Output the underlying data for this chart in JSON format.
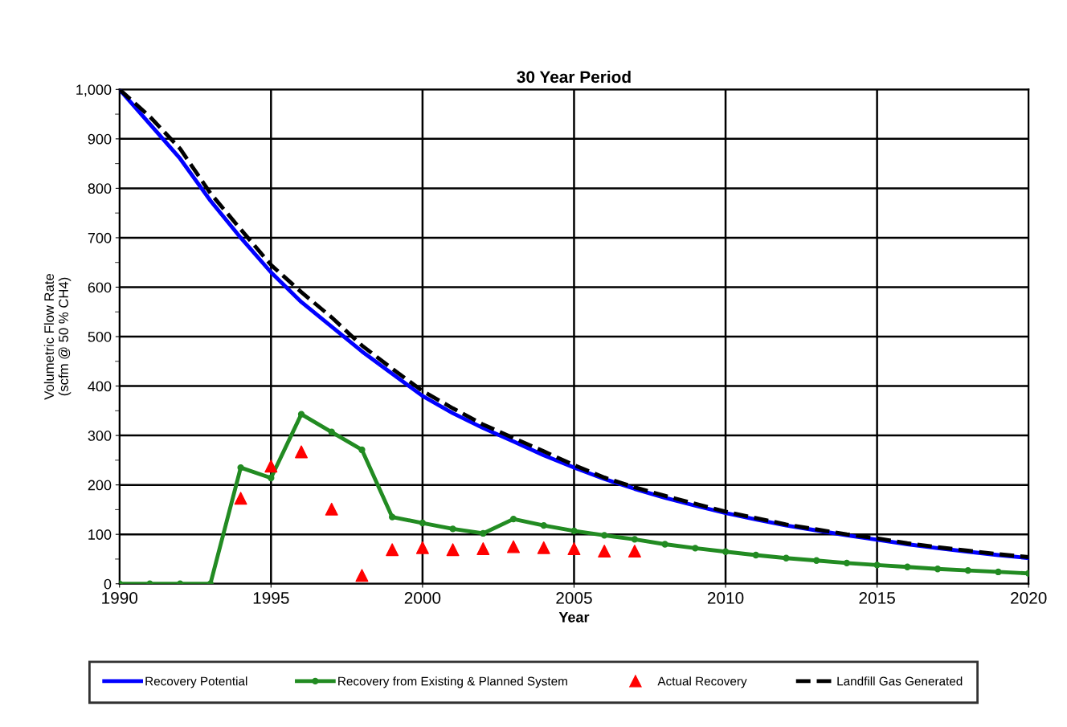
{
  "chart_data": {
    "type": "line",
    "title": "30 Year Period",
    "xlabel": "Year",
    "ylabel": "Volumetric Flow Rate\n(scfm @ 50 % CH4)",
    "xlim": [
      1990,
      2020
    ],
    "xticks": [
      1990,
      1995,
      2000,
      2005,
      2010,
      2015,
      2020
    ],
    "ylim": [
      0,
      1000
    ],
    "yticks": [
      0,
      {
        "value": 50,
        "label": null
      },
      {
        "value": 100,
        "label": "100"
      },
      {
        "value": 150,
        "label": null
      },
      200,
      {
        "value": 250,
        "label": null
      },
      300,
      {
        "value": 350,
        "label": null
      },
      400,
      {
        "value": 450,
        "label": null
      },
      500,
      {
        "value": 550,
        "label": null
      },
      600,
      {
        "value": 650,
        "label": null
      },
      700,
      {
        "value": 750,
        "label": null
      },
      800,
      {
        "value": 850,
        "label": null
      },
      900,
      {
        "value": 950,
        "label": null
      },
      {
        "value": 1000,
        "label": "1,000"
      }
    ],
    "grid": true,
    "legend": "bottom",
    "x": [
      1990,
      1991,
      1992,
      1993,
      1994,
      1995,
      1996,
      1997,
      1998,
      1999,
      2000,
      2001,
      2002,
      2003,
      2004,
      2005,
      2006,
      2007,
      2008,
      2009,
      2010,
      2011,
      2012,
      2013,
      2014,
      2015,
      2016,
      2017,
      2018,
      2019,
      2020
    ],
    "series": [
      {
        "name": "Recovery Potential",
        "color": "#0000ff",
        "marker": "none",
        "line_style": "solid",
        "values": [
          1000,
          930,
          860,
          775,
          700,
          630,
          570,
          520,
          470,
          425,
          380,
          345,
          315,
          288,
          260,
          235,
          212,
          192,
          174,
          158,
          143,
          130,
          118,
          108,
          98,
          89,
          80,
          72,
          65,
          58,
          52
        ]
      },
      {
        "name": "Recovery from Existing & Planned System",
        "color": "#228b22",
        "marker": "circle",
        "line_style": "solid",
        "values": [
          0,
          0,
          0,
          0,
          235,
          214,
          343,
          307,
          271,
          135,
          123,
          111,
          102,
          131,
          118,
          107,
          98,
          90,
          80,
          72,
          65,
          58,
          52,
          47,
          42,
          38,
          34,
          30,
          27,
          24,
          21
        ]
      },
      {
        "name": "Actual Recovery",
        "type": "scatter",
        "color": "#ff0000",
        "marker": "triangle",
        "x": [
          1994,
          1995,
          1996,
          1997,
          1998,
          1999,
          2000,
          2001,
          2002,
          2003,
          2004,
          2005,
          2006,
          2007
        ],
        "values": [
          173,
          238,
          267,
          151,
          17,
          69,
          73,
          69,
          71,
          75,
          73,
          71,
          66,
          66
        ]
      },
      {
        "name": "Landfill Gas Generated",
        "color": "#000000",
        "marker": "none",
        "line_style": "dashed",
        "values": [
          1000,
          945,
          880,
          790,
          717,
          645,
          590,
          539,
          482,
          435,
          390,
          355,
          322,
          295,
          268,
          240,
          215,
          195,
          178,
          162,
          146,
          133,
          120,
          110,
          100,
          92,
          82,
          74,
          67,
          60,
          54
        ]
      }
    ]
  }
}
